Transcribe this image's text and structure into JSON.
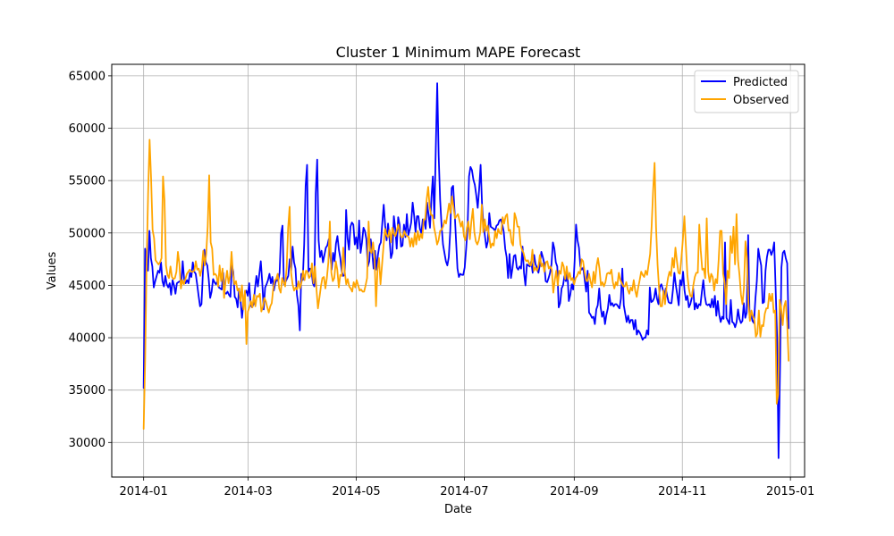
{
  "chart_data": {
    "type": "line",
    "title": "Cluster 1 Minimum MAPE Forecast",
    "xlabel": "Date",
    "ylabel": "Values",
    "xlim": [
      "2013-12-14",
      "2015-01-09"
    ],
    "ylim": [
      26700,
      66100
    ],
    "x_ticks": [
      "2014-01-01",
      "2014-03-01",
      "2014-05-01",
      "2014-07-01",
      "2014-09-01",
      "2014-11-01",
      "2015-01-01"
    ],
    "x_tick_labels": [
      "2014-01",
      "2014-03",
      "2014-05",
      "2014-07",
      "2014-09",
      "2014-11",
      "2015-01"
    ],
    "y_ticks": [
      30000,
      35000,
      40000,
      45000,
      50000,
      55000,
      60000,
      65000
    ],
    "y_tick_labels": [
      "30000",
      "35000",
      "40000",
      "45000",
      "50000",
      "55000",
      "60000",
      "65000"
    ],
    "grid": true,
    "legend_position": "top-right",
    "x_start": "2014-01-01",
    "x_end": "2014-12-31",
    "series": [
      {
        "name": "Predicted",
        "color": "#0000ff",
        "values": [
          35200,
          48500,
          47000,
          46400,
          50200,
          47600,
          46800,
          44800,
          45400,
          45900,
          46400,
          46200,
          47200,
          45400,
          44900,
          45900,
          45100,
          44800,
          45200,
          44100,
          45500,
          45000,
          44200,
          45200,
          45300,
          45400,
          45100,
          47300,
          45600,
          45200,
          45500,
          45200,
          46200,
          45800,
          47200,
          46300,
          46100,
          45100,
          44000,
          43000,
          43200,
          46300,
          48400,
          47200,
          46900,
          45600,
          43800,
          44400,
          45600,
          45300,
          45100,
          45400,
          44800,
          44700,
          44600,
          46200,
          44300,
          44200,
          44400,
          44100,
          43900,
          46900,
          46300,
          43900,
          43700,
          42900,
          44700,
          43600,
          41900,
          43300,
          44200,
          44500,
          44000,
          45200,
          43100,
          42900,
          43200,
          44700,
          45900,
          44900,
          46100,
          47300,
          45300,
          42700,
          44800,
          45100,
          45500,
          46100,
          45200,
          45800,
          44500,
          45200,
          45600,
          45400,
          46200,
          49900,
          50700,
          45100,
          45300,
          45600,
          45900,
          47500,
          46400,
          48700,
          47200,
          46600,
          44100,
          43100,
          40700,
          46100,
          45500,
          48900,
          54500,
          56500,
          46300,
          46600,
          46500,
          45200,
          44900,
          53800,
          57000,
          49300,
          47700,
          48300,
          47200,
          47900,
          48600,
          48800,
          49400,
          47900,
          46500,
          48100,
          47300,
          49000,
          49700,
          48400,
          47600,
          46300,
          45900,
          46000,
          52200,
          49500,
          48400,
          50600,
          51000,
          50800,
          48900,
          49600,
          48500,
          51200,
          48100,
          49100,
          50500,
          50200,
          49400,
          46800,
          47300,
          49400,
          48200,
          46600,
          48300,
          46500,
          47900,
          48800,
          49100,
          50900,
          52700,
          50700,
          49300,
          50900,
          49500,
          47600,
          48100,
          51600,
          50400,
          48500,
          51500,
          50800,
          48700,
          48800,
          50800,
          49600,
          51800,
          49800,
          50300,
          51000,
          52900,
          51700,
          50100,
          51600,
          51600,
          50400,
          50000,
          51300,
          51200,
          50400,
          52900,
          51700,
          50500,
          53400,
          55400,
          51400,
          58000,
          64300,
          57400,
          53200,
          50700,
          48900,
          48100,
          47300,
          46900,
          47700,
          50200,
          54300,
          54500,
          52100,
          49300,
          46600,
          45800,
          46100,
          46000,
          46000,
          46700,
          48500,
          50600,
          55400,
          56300,
          56000,
          55100,
          54600,
          53600,
          52400,
          54200,
          56500,
          52700,
          50800,
          49700,
          48600,
          49200,
          51900,
          50600,
          50500,
          50400,
          50200,
          50700,
          50800,
          51200,
          51300,
          50800,
          50100,
          48500,
          47700,
          45700,
          48000,
          45700,
          46600,
          47800,
          47900,
          46700,
          46500,
          46800,
          46600,
          48700,
          46200,
          45000,
          47000,
          46900,
          46800,
          47300,
          46200,
          47900,
          47000,
          46700,
          46200,
          47000,
          48200,
          47700,
          47100,
          45400,
          45300,
          45700,
          46200,
          47000,
          49100,
          48500,
          47200,
          46800,
          42900,
          43300,
          44700,
          45000,
          45900,
          45400,
          46300,
          43500,
          44100,
          45100,
          44600,
          47300,
          50800,
          49300,
          48600,
          46800,
          46500,
          46700,
          45500,
          44400,
          46400,
          42400,
          42200,
          41900,
          42000,
          41300,
          42700,
          43100,
          44700,
          42900,
          42000,
          42500,
          41300,
          42200,
          42800,
          44100,
          43100,
          43300,
          43000,
          43200,
          43200,
          43000,
          42800,
          43700,
          46600,
          43100,
          42300,
          41500,
          42100,
          41400,
          41700,
          41700,
          40800,
          41700,
          40300,
          40700,
          40500,
          40200,
          39800,
          40000,
          40000,
          40700,
          40300,
          44800,
          43400,
          43500,
          43800,
          44700,
          43700,
          43200,
          44900,
          45100,
          44600,
          44000,
          44700,
          44000,
          43400,
          43300,
          43300,
          44600,
          46200,
          45000,
          44100,
          43100,
          45500,
          45000,
          46300,
          44500,
          43600,
          44000,
          42900,
          43200,
          43800,
          44700,
          42700,
          43300,
          42800,
          43200,
          43100,
          44400,
          45500,
          44000,
          43200,
          43100,
          43200,
          42900,
          43700,
          42900,
          44000,
          42100,
          43500,
          42200,
          41500,
          42000,
          41800,
          49100,
          41900,
          41600,
          41300,
          43600,
          41500,
          41400,
          41000,
          41500,
          42700,
          41800,
          41400,
          41600,
          43300,
          41900,
          42400,
          49800,
          41900,
          42200,
          41600,
          41400,
          43700,
          45400,
          48500,
          47600,
          46900,
          43300,
          43400,
          46400,
          47700,
          48400,
          48400,
          47900,
          48300,
          49100,
          44700,
          40100,
          28500,
          36800,
          46700,
          48100,
          48300,
          47600,
          47100,
          40900
        ]
      },
      {
        "name": "Observed",
        "color": "#ffa500",
        "values": [
          31300,
          37800,
          47100,
          53800,
          58900,
          55200,
          50300,
          49500,
          47400,
          47200,
          47000,
          47200,
          47600,
          55400,
          53100,
          46900,
          46000,
          45700,
          46800,
          45800,
          45600,
          45700,
          46300,
          48200,
          47000,
          44700,
          45500,
          45100,
          45600,
          46100,
          46300,
          46500,
          46300,
          46300,
          46400,
          47300,
          46500,
          46600,
          45900,
          46600,
          48300,
          46900,
          48000,
          50600,
          55500,
          49100,
          48500,
          46000,
          46100,
          45900,
          44900,
          46900,
          45400,
          46600,
          43800,
          45400,
          46400,
          45200,
          45900,
          48200,
          46100,
          45100,
          45400,
          44500,
          44700,
          43500,
          45000,
          42700,
          44500,
          39400,
          42500,
          42900,
          43500,
          42900,
          44100,
          43000,
          44000,
          43900,
          44200,
          42500,
          42900,
          43800,
          43500,
          42900,
          42400,
          43000,
          43300,
          44700,
          45500,
          45600,
          46100,
          44700,
          44300,
          45700,
          45300,
          44900,
          46700,
          50500,
          52500,
          46200,
          45100,
          44500,
          44800,
          44600,
          45400,
          44700,
          45300,
          46400,
          45500,
          46400,
          46300,
          45700,
          45900,
          47100,
          45200,
          46800,
          44700,
          42800,
          43800,
          44900,
          45700,
          45800,
          44700,
          45700,
          47200,
          51100,
          46200,
          45400,
          45700,
          47300,
          46500,
          44800,
          46000,
          45900,
          48600,
          46300,
          45100,
          45600,
          44900,
          44700,
          44400,
          45300,
          44800,
          45500,
          45000,
          44500,
          44600,
          44400,
          44400,
          45000,
          45700,
          51100,
          48300,
          48100,
          49100,
          47700,
          43000,
          46500,
          47600,
          45100,
          46900,
          48700,
          50400,
          49800,
          49600,
          50300,
          49100,
          50500,
          49900,
          49700,
          50300,
          50800,
          50000,
          49600,
          49600,
          50200,
          49800,
          49700,
          49600,
          48700,
          49500,
          48700,
          50000,
          48900,
          50200,
          49300,
          49900,
          49500,
          51300,
          51300,
          53200,
          54400,
          52500,
          51700,
          51700,
          50500,
          49800,
          48900,
          49300,
          50200,
          50300,
          50600,
          51200,
          50900,
          51800,
          52800,
          51900,
          53500,
          52500,
          51400,
          51600,
          51800,
          51200,
          50600,
          51100,
          49700,
          49300,
          50500,
          51100,
          49400,
          51100,
          52300,
          50100,
          49200,
          48900,
          49300,
          50100,
          52700,
          50100,
          51300,
          50200,
          50700,
          49600,
          48600,
          49000,
          48800,
          50200,
          49500,
          50400,
          50000,
          49900,
          51500,
          50900,
          51600,
          51800,
          50200,
          50300,
          49100,
          48800,
          51900,
          51400,
          50600,
          50600,
          48900,
          48400,
          48100,
          47500,
          47300,
          47400,
          47000,
          46900,
          48400,
          46400,
          46700,
          46400,
          46800,
          47900,
          46800,
          47100,
          46300,
          47200,
          47300,
          46600,
          46800,
          46500,
          44300,
          45500,
          46400,
          45000,
          46400,
          46100,
          47200,
          46800,
          45600,
          46800,
          45600,
          46200,
          45500,
          45700,
          45100,
          45700,
          45900,
          46300,
          46100,
          47500,
          47300,
          46300,
          45500,
          45400,
          46100,
          45400,
          44800,
          46300,
          45200,
          46800,
          47600,
          46600,
          45000,
          45300,
          44900,
          45300,
          46100,
          46200,
          46100,
          46500,
          45300,
          44700,
          45300,
          45000,
          46200,
          45500,
          45200,
          44900,
          44900,
          45300,
          44600,
          44200,
          44800,
          44500,
          45500,
          44500,
          43900,
          44800,
          45500,
          46300,
          46000,
          45800,
          46400,
          46000,
          47000,
          48000,
          50600,
          54000,
          56700,
          50500,
          47000,
          44700,
          43000,
          43000,
          44500,
          43200,
          44800,
          45700,
          46300,
          45900,
          47600,
          46700,
          48600,
          47300,
          46200,
          46100,
          47600,
          49400,
          51600,
          48800,
          46000,
          44700,
          44000,
          43900,
          45000,
          45800,
          46200,
          46200,
          50800,
          48300,
          46500,
          46600,
          45700,
          51400,
          46300,
          45300,
          46100,
          45800,
          44500,
          45600,
          45200,
          47400,
          50200,
          50200,
          46100,
          45300,
          43200,
          46400,
          45700,
          49700,
          48100,
          50600,
          47000,
          51800,
          47400,
          46000,
          44100,
          43200,
          44800,
          49200,
          47600,
          43300,
          41600,
          42600,
          42100,
          41700,
          40100,
          40400,
          42600,
          40100,
          41200,
          41100,
          42300,
          42800,
          42800,
          44200,
          43500,
          44200,
          42400,
          42600,
          33700,
          34600,
          43600,
          42800,
          41200,
          43000,
          43500,
          41400,
          37800
        ]
      }
    ]
  }
}
